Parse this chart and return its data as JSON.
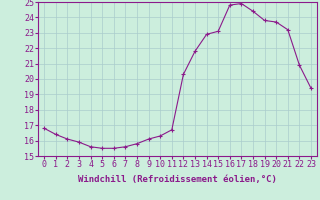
{
  "x": [
    0,
    1,
    2,
    3,
    4,
    5,
    6,
    7,
    8,
    9,
    10,
    11,
    12,
    13,
    14,
    15,
    16,
    17,
    18,
    19,
    20,
    21,
    22,
    23
  ],
  "y": [
    16.8,
    16.4,
    16.1,
    15.9,
    15.6,
    15.5,
    15.5,
    15.6,
    15.8,
    16.1,
    16.3,
    16.7,
    20.3,
    21.8,
    22.9,
    23.1,
    24.8,
    24.9,
    24.4,
    23.8,
    23.7,
    23.2,
    20.9,
    19.4
  ],
  "xlim": [
    -0.5,
    23.5
  ],
  "ylim": [
    15,
    25
  ],
  "yticks": [
    15,
    16,
    17,
    18,
    19,
    20,
    21,
    22,
    23,
    24,
    25
  ],
  "xticks": [
    0,
    1,
    2,
    3,
    4,
    5,
    6,
    7,
    8,
    9,
    10,
    11,
    12,
    13,
    14,
    15,
    16,
    17,
    18,
    19,
    20,
    21,
    22,
    23
  ],
  "xlabel": "Windchill (Refroidissement éolien,°C)",
  "line_color": "#8b1a8b",
  "bg_color": "#cceedd",
  "grid_color": "#aacccc",
  "marker": "+",
  "label_fontsize": 6.5,
  "tick_fontsize": 6
}
